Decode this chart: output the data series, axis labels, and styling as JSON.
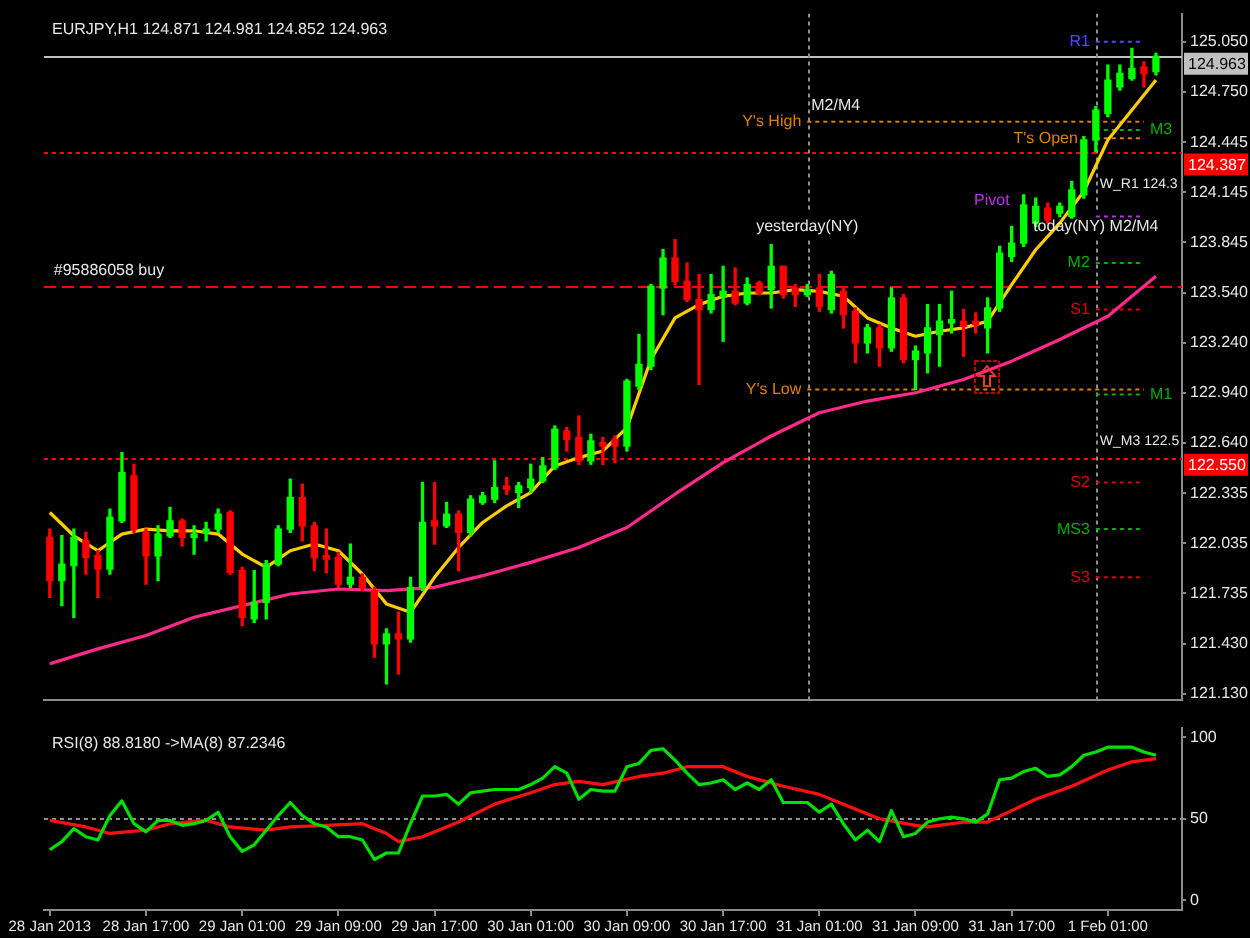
{
  "chart_data": [
    {
      "type": "candlestick",
      "title": "EURJPY,H1 124.871 124.981 124.852 124.963",
      "x": [
        "2013-01-28T09:00",
        "2013-01-28T10:00",
        "2013-01-28T11:00",
        "2013-01-28T12:00",
        "2013-01-28T13:00",
        "2013-01-28T14:00",
        "2013-01-28T15:00",
        "2013-01-28T16:00",
        "2013-01-28T17:00",
        "2013-01-28T18:00",
        "2013-01-28T19:00",
        "2013-01-28T20:00",
        "2013-01-28T21:00",
        "2013-01-28T22:00",
        "2013-01-28T23:00",
        "2013-01-29T00:00",
        "2013-01-29T01:00",
        "2013-01-29T02:00",
        "2013-01-29T03:00",
        "2013-01-29T04:00",
        "2013-01-29T05:00",
        "2013-01-29T06:00",
        "2013-01-29T07:00",
        "2013-01-29T08:00",
        "2013-01-29T09:00",
        "2013-01-29T10:00",
        "2013-01-29T11:00",
        "2013-01-29T12:00",
        "2013-01-29T13:00",
        "2013-01-29T14:00",
        "2013-01-29T15:00",
        "2013-01-29T16:00",
        "2013-01-29T17:00",
        "2013-01-29T18:00",
        "2013-01-29T19:00",
        "2013-01-29T20:00",
        "2013-01-29T21:00",
        "2013-01-29T22:00",
        "2013-01-29T23:00",
        "2013-01-30T00:00",
        "2013-01-30T01:00",
        "2013-01-30T02:00",
        "2013-01-30T03:00",
        "2013-01-30T04:00",
        "2013-01-30T05:00",
        "2013-01-30T06:00",
        "2013-01-30T07:00",
        "2013-01-30T08:00",
        "2013-01-30T09:00",
        "2013-01-30T10:00",
        "2013-01-30T11:00",
        "2013-01-30T12:00",
        "2013-01-30T13:00",
        "2013-01-30T14:00",
        "2013-01-30T15:00",
        "2013-01-30T16:00",
        "2013-01-30T17:00",
        "2013-01-30T18:00",
        "2013-01-30T19:00",
        "2013-01-30T20:00",
        "2013-01-30T21:00",
        "2013-01-30T22:00",
        "2013-01-30T23:00",
        "2013-01-31T00:00",
        "2013-01-31T01:00",
        "2013-01-31T02:00",
        "2013-01-31T03:00",
        "2013-01-31T04:00",
        "2013-01-31T05:00",
        "2013-01-31T06:00",
        "2013-01-31T07:00",
        "2013-01-31T08:00",
        "2013-01-31T09:00",
        "2013-01-31T10:00",
        "2013-01-31T11:00",
        "2013-01-31T12:00",
        "2013-01-31T13:00",
        "2013-01-31T14:00",
        "2013-01-31T15:00",
        "2013-01-31T16:00",
        "2013-01-31T17:00",
        "2013-01-31T18:00",
        "2013-01-31T19:00",
        "2013-01-31T20:00",
        "2013-01-31T21:00",
        "2013-01-31T22:00",
        "2013-01-31T23:00",
        "2013-02-01T00:00",
        "2013-02-01T01:00",
        "2013-02-01T02:00",
        "2013-02-01T03:00",
        "2013-02-01T04:00",
        "2013-02-01T05:00"
      ],
      "ohlc": [
        [
          122.07,
          122.12,
          121.71,
          121.81
        ],
        [
          121.81,
          122.08,
          121.66,
          121.91
        ],
        [
          121.9,
          122.12,
          121.59,
          122.07
        ],
        [
          122.05,
          122.1,
          121.85,
          121.95
        ],
        [
          121.96,
          121.99,
          121.71,
          121.88
        ],
        [
          121.88,
          122.24,
          121.85,
          122.19
        ],
        [
          122.17,
          122.58,
          122.16,
          122.46
        ],
        [
          122.44,
          122.51,
          122.1,
          122.12
        ],
        [
          122.1,
          122.12,
          121.79,
          121.96
        ],
        [
          121.96,
          122.14,
          121.81,
          122.09
        ],
        [
          122.08,
          122.25,
          122.07,
          122.17
        ],
        [
          122.17,
          122.18,
          122.02,
          122.07
        ],
        [
          122.07,
          122.14,
          121.97,
          122.09
        ],
        [
          122.1,
          122.16,
          122.05,
          122.12
        ],
        [
          122.12,
          122.24,
          122.1,
          122.21
        ],
        [
          122.22,
          122.23,
          121.85,
          121.86
        ],
        [
          121.87,
          121.89,
          121.54,
          121.59
        ],
        [
          121.58,
          121.87,
          121.56,
          121.68
        ],
        [
          121.68,
          121.93,
          121.58,
          121.91
        ],
        [
          121.91,
          122.14,
          121.9,
          122.12
        ],
        [
          122.12,
          122.42,
          122.1,
          122.31
        ],
        [
          122.31,
          122.39,
          122.05,
          122.14
        ],
        [
          122.14,
          122.16,
          121.87,
          121.95
        ],
        [
          121.96,
          122.12,
          121.86,
          121.94
        ],
        [
          121.95,
          121.98,
          121.77,
          121.79
        ],
        [
          121.79,
          122.03,
          121.77,
          121.83
        ],
        [
          121.83,
          121.85,
          121.75,
          121.77
        ],
        [
          121.75,
          121.77,
          121.35,
          121.43
        ],
        [
          121.43,
          121.52,
          121.19,
          121.49
        ],
        [
          121.49,
          121.62,
          121.25,
          121.46
        ],
        [
          121.46,
          121.83,
          121.44,
          121.77
        ],
        [
          121.77,
          122.4,
          121.75,
          122.16
        ],
        [
          122.17,
          122.4,
          122.03,
          122.14
        ],
        [
          122.14,
          122.28,
          122.13,
          122.21
        ],
        [
          122.21,
          122.23,
          121.87,
          122.1
        ],
        [
          122.1,
          122.32,
          122.08,
          122.3
        ],
        [
          122.28,
          122.34,
          122.27,
          122.32
        ],
        [
          122.3,
          122.53,
          122.28,
          122.37
        ],
        [
          122.38,
          122.43,
          122.33,
          122.36
        ],
        [
          122.34,
          122.4,
          122.25,
          122.38
        ],
        [
          122.37,
          122.51,
          122.34,
          122.42
        ],
        [
          122.41,
          122.55,
          122.4,
          122.5
        ],
        [
          122.49,
          122.74,
          122.48,
          122.72
        ],
        [
          122.71,
          122.73,
          122.59,
          122.66
        ],
        [
          122.67,
          122.8,
          122.51,
          122.53
        ],
        [
          122.53,
          122.69,
          122.51,
          122.65
        ],
        [
          122.64,
          122.67,
          122.51,
          122.62
        ],
        [
          122.66,
          122.68,
          122.52,
          122.62
        ],
        [
          122.62,
          123.02,
          122.59,
          123.01
        ],
        [
          122.98,
          123.29,
          122.96,
          123.11
        ],
        [
          123.1,
          123.59,
          123.08,
          123.58
        ],
        [
          123.57,
          123.8,
          123.41,
          123.75
        ],
        [
          123.75,
          123.86,
          123.59,
          123.61
        ],
        [
          123.61,
          123.72,
          123.49,
          123.5
        ],
        [
          123.5,
          123.65,
          122.99,
          123.44
        ],
        [
          123.44,
          123.65,
          123.42,
          123.53
        ],
        [
          123.52,
          123.7,
          123.25,
          123.55
        ],
        [
          123.55,
          123.69,
          123.47,
          123.48
        ],
        [
          123.48,
          123.63,
          123.47,
          123.59
        ],
        [
          123.6,
          123.61,
          123.53,
          123.54
        ],
        [
          123.56,
          123.83,
          123.45,
          123.7
        ],
        [
          123.7,
          123.7,
          123.51,
          123.53
        ],
        [
          123.57,
          123.59,
          123.46,
          123.53
        ],
        [
          123.53,
          123.59,
          123.52,
          123.56
        ],
        [
          123.57,
          123.65,
          123.43,
          123.46
        ],
        [
          123.44,
          123.67,
          123.42,
          123.65
        ],
        [
          123.55,
          123.57,
          123.33,
          123.41
        ],
        [
          123.43,
          123.45,
          123.12,
          123.24
        ],
        [
          123.24,
          123.35,
          123.18,
          123.33
        ],
        [
          123.33,
          123.35,
          123.1,
          123.21
        ],
        [
          123.21,
          123.57,
          123.19,
          123.51
        ],
        [
          123.51,
          123.53,
          123.12,
          123.14
        ],
        [
          123.14,
          123.22,
          122.96,
          123.19
        ],
        [
          123.18,
          123.47,
          123.06,
          123.33
        ],
        [
          123.29,
          123.47,
          123.1,
          123.37
        ],
        [
          123.36,
          123.55,
          123.3,
          123.38
        ],
        [
          123.37,
          123.44,
          123.16,
          123.34
        ],
        [
          123.37,
          123.42,
          123.3,
          123.35
        ],
        [
          123.33,
          123.51,
          123.18,
          123.45
        ],
        [
          123.45,
          123.82,
          123.43,
          123.78
        ],
        [
          123.76,
          123.94,
          123.73,
          123.84
        ],
        [
          123.84,
          124.13,
          123.82,
          124.07
        ],
        [
          123.96,
          124.11,
          123.94,
          124.06
        ],
        [
          124.05,
          124.08,
          123.96,
          123.98
        ],
        [
          124.02,
          124.08,
          124.0,
          124.06
        ],
        [
          124.0,
          124.21,
          123.99,
          124.16
        ],
        [
          124.13,
          124.48,
          124.11,
          124.46
        ],
        [
          124.46,
          124.66,
          124.39,
          124.64
        ],
        [
          124.62,
          124.91,
          124.6,
          124.82
        ],
        [
          124.78,
          124.91,
          124.76,
          124.86
        ],
        [
          124.83,
          125.01,
          124.82,
          124.89
        ],
        [
          124.9,
          124.93,
          124.78,
          124.86
        ],
        [
          124.871,
          124.981,
          124.852,
          124.963
        ]
      ],
      "colors": [
        "#ff0000",
        "#00ff00",
        "#00ff00",
        "#ff0000",
        "#ff0000",
        "#00ff00",
        "#00ff00",
        "#ff0000",
        "#ff0000",
        "#00ff00",
        "#00ff00",
        "#ff0000",
        "#00ff00",
        "#00ff00",
        "#00ff00",
        "#ff0000",
        "#ff0000",
        "#00ff00",
        "#00ff00",
        "#00ff00",
        "#00ff00",
        "#ff0000",
        "#ff0000",
        "#ff0000",
        "#ff0000",
        "#00ff00",
        "#ff0000",
        "#ff0000",
        "#00ff00",
        "#ff0000",
        "#00ff00",
        "#00ff00",
        "#ff0000",
        "#00ff00",
        "#ff0000",
        "#00ff00",
        "#00ff00",
        "#00ff00",
        "#ff0000",
        "#00ff00",
        "#00ff00",
        "#00ff00",
        "#00ff00",
        "#ff0000",
        "#ff0000",
        "#00ff00",
        "#ff0000",
        "#ff0000",
        "#00ff00",
        "#00ff00",
        "#00ff00",
        "#00ff00",
        "#ff0000",
        "#ff0000",
        "#ff0000",
        "#00ff00",
        "#00ff00",
        "#ff0000",
        "#00ff00",
        "#ff0000",
        "#00ff00",
        "#ff0000",
        "#ff0000",
        "#00ff00",
        "#ff0000",
        "#00ff00",
        "#ff0000",
        "#ff0000",
        "#00ff00",
        "#ff0000",
        "#00ff00",
        "#ff0000",
        "#00ff00",
        "#00ff00",
        "#00ff00",
        "#00ff00",
        "#ff0000",
        "#ff0000",
        "#00ff00",
        "#00ff00",
        "#00ff00",
        "#00ff00",
        "#00ff00",
        "#ff0000",
        "#00ff00",
        "#00ff00",
        "#00ff00",
        "#00ff00",
        "#00ff00",
        "#00ff00",
        "#00ff00",
        "#ff0000",
        "#00ff00"
      ],
      "series": [
        {
          "type": "line",
          "color": "#ffcc00",
          "x": [
            "2013-01-28T09:00",
            "2013-01-28T11:00",
            "2013-01-28T13:00",
            "2013-01-28T15:00",
            "2013-01-28T17:00",
            "2013-01-28T19:00",
            "2013-01-28T21:00",
            "2013-01-28T23:00",
            "2013-01-29T01:00",
            "2013-01-29T03:00",
            "2013-01-29T05:00",
            "2013-01-29T07:00",
            "2013-01-29T09:00",
            "2013-01-29T11:00",
            "2013-01-29T13:00",
            "2013-01-29T15:00",
            "2013-01-29T17:00",
            "2013-01-29T19:00",
            "2013-01-29T21:00",
            "2013-01-29T23:00",
            "2013-01-30T01:00",
            "2013-01-30T03:00",
            "2013-01-30T05:00",
            "2013-01-30T07:00",
            "2013-01-30T09:00",
            "2013-01-30T11:00",
            "2013-01-30T13:00",
            "2013-01-30T15:00",
            "2013-01-30T17:00",
            "2013-01-30T19:00",
            "2013-01-30T21:00",
            "2013-01-30T23:00",
            "2013-01-31T01:00",
            "2013-01-31T03:00",
            "2013-01-31T05:00",
            "2013-01-31T07:00",
            "2013-01-31T09:00",
            "2013-01-31T11:00",
            "2013-01-31T13:00",
            "2013-01-31T15:00",
            "2013-01-31T17:00",
            "2013-01-31T19:00",
            "2013-01-31T21:00",
            "2013-01-31T23:00",
            "2013-02-01T01:00",
            "2013-02-01T03:00",
            "2013-02-01T05:00"
          ],
          "values": [
            122.22,
            122.08,
            121.99,
            122.09,
            122.12,
            122.11,
            122.11,
            122.09,
            121.97,
            121.89,
            121.99,
            122.03,
            121.99,
            121.85,
            121.67,
            121.62,
            121.83,
            122.01,
            122.16,
            122.26,
            122.34,
            122.5,
            122.55,
            122.59,
            122.73,
            123.14,
            123.39,
            123.47,
            123.52,
            123.54,
            123.54,
            123.56,
            123.55,
            123.52,
            123.39,
            123.33,
            123.28,
            123.31,
            123.33,
            123.37,
            123.59,
            123.8,
            123.96,
            124.15,
            124.46,
            124.64,
            124.82
          ]
        },
        {
          "type": "line",
          "color": "#ff2a8c",
          "x": [
            "2013-01-28T09:00",
            "2013-01-28T13:00",
            "2013-01-28T17:00",
            "2013-01-28T21:00",
            "2013-01-29T01:00",
            "2013-01-29T05:00",
            "2013-01-29T09:00",
            "2013-01-29T13:00",
            "2013-01-29T17:00",
            "2013-01-29T21:00",
            "2013-01-30T01:00",
            "2013-01-30T05:00",
            "2013-01-30T09:00",
            "2013-01-30T13:00",
            "2013-01-30T17:00",
            "2013-01-30T21:00",
            "2013-01-31T01:00",
            "2013-01-31T05:00",
            "2013-01-31T09:00",
            "2013-01-31T13:00",
            "2013-01-31T17:00",
            "2013-01-31T21:00",
            "2013-02-01T01:00",
            "2013-02-01T05:00"
          ],
          "values": [
            121.31,
            121.4,
            121.48,
            121.59,
            121.66,
            121.73,
            121.76,
            121.75,
            121.77,
            121.84,
            121.92,
            122.01,
            122.13,
            122.33,
            122.52,
            122.68,
            122.82,
            122.89,
            122.94,
            123.02,
            123.13,
            123.26,
            123.4,
            123.64
          ]
        },
        {
          "type": "line",
          "name": "R1",
          "color": "#4a4aff",
          "line_style": "dotted",
          "x": [
            "2013-02-01T00:00",
            "2013-02-01T04:00"
          ],
          "values": [
            125.05,
            125.05
          ]
        },
        {
          "type": "line",
          "name": "M3",
          "color": "#00b000",
          "line_style": "dotted",
          "x": [
            "2013-02-01T00:00",
            "2013-02-01T04:00"
          ],
          "values": [
            124.52,
            124.52
          ]
        },
        {
          "type": "line",
          "name": "T's Open",
          "color": "#e08000",
          "line_style": "dotted",
          "x": [
            "2013-02-01T00:00",
            "2013-02-01T04:00"
          ],
          "values": [
            124.47,
            124.47
          ]
        },
        {
          "type": "line",
          "name": "Pivot",
          "color": "#c030f0",
          "line_style": "dotted",
          "x": [
            "2013-02-01T00:00",
            "2013-02-01T04:00"
          ],
          "values": [
            124.0,
            124.0
          ]
        },
        {
          "type": "line",
          "name": "M2",
          "color": "#00b000",
          "line_style": "dotted",
          "x": [
            "2013-02-01T00:00",
            "2013-02-01T04:00"
          ],
          "values": [
            123.72,
            123.72
          ]
        },
        {
          "type": "line",
          "name": "S1",
          "color": "#e00000",
          "line_style": "dotted",
          "x": [
            "2013-02-01T00:00",
            "2013-02-01T04:00"
          ],
          "values": [
            123.44,
            123.44
          ]
        },
        {
          "type": "line",
          "name": "M1",
          "color": "#00b000",
          "line_style": "dotted",
          "x": [
            "2013-02-01T00:00",
            "2013-02-01T04:00"
          ],
          "values": [
            122.93,
            122.93
          ]
        },
        {
          "type": "line",
          "name": "S2",
          "color": "#e00000",
          "line_style": "dotted",
          "x": [
            "2013-02-01T00:00",
            "2013-02-01T04:00"
          ],
          "values": [
            122.4,
            122.4
          ]
        },
        {
          "type": "line",
          "name": "MS3",
          "color": "#00b000",
          "line_style": "dotted",
          "x": [
            "2013-02-01T00:00",
            "2013-02-01T04:00"
          ],
          "values": [
            122.12,
            122.12
          ]
        },
        {
          "type": "line",
          "name": "S3",
          "color": "#e00000",
          "line_style": "dotted",
          "x": [
            "2013-02-01T00:00",
            "2013-02-01T04:00"
          ],
          "values": [
            121.83,
            121.83
          ]
        },
        {
          "type": "line",
          "name": "Y's High",
          "color": "#e08000",
          "line_style": "dotted",
          "x": [
            "2013-01-31T00:00",
            "2013-02-01T04:00"
          ],
          "values": [
            124.57,
            124.57
          ]
        },
        {
          "type": "line",
          "name": "Y's Low",
          "color": "#e08000",
          "line_style": "dotted",
          "x": [
            "2013-01-31T00:00",
            "2013-02-01T04:00"
          ],
          "values": [
            122.96,
            122.96
          ]
        }
      ],
      "xlim": [
        "2013-01-28T08:31",
        "2013-02-01T07:10"
      ],
      "ylim": [
        121.09,
        125.22
      ],
      "yticks": [
        {
          "value": 125.05,
          "label": "125.050"
        },
        {
          "value": 124.75,
          "label": "124.750"
        },
        124.445,
        124.145,
        123.845,
        {
          "value": 123.54,
          "label": "123.540"
        },
        {
          "value": 123.24,
          "label": "123.240"
        },
        {
          "value": 122.94,
          "label": "122.940"
        },
        {
          "value": 122.64,
          "label": "122.640"
        },
        122.335,
        122.035,
        121.735,
        {
          "value": 121.43,
          "label": "121.430"
        },
        {
          "value": 121.13,
          "label": "121.130"
        }
      ],
      "tick_labels": "y",
      "ref_lines": [
        {
          "axis": "y",
          "value": 124.963,
          "label": "124.963",
          "color": "#c0c0c0",
          "line_style": "solid"
        },
        {
          "axis": "y",
          "value": 124.387,
          "label": "124.387",
          "color": "#ff0000",
          "line_style": "dotted"
        },
        {
          "axis": "y",
          "value": 123.58,
          "color": "#ff0000",
          "line_style": "dashed"
        },
        {
          "axis": "y",
          "value": 122.55,
          "label": "122.550",
          "color": "#ff0000",
          "line_style": "dotted"
        },
        {
          "axis": "x",
          "value": "2013-01-31T00:00",
          "label": "yesterday(NY)",
          "color": "#909090",
          "line_style": "dotted"
        },
        {
          "axis": "x",
          "value": "2013-02-01T00:00",
          "label": "today(NY) M2/M4",
          "color": "#909090",
          "line_style": "dotted"
        }
      ],
      "annotations": [
        {
          "text": "#95886058 buy",
          "x": "2013-01-28T09:00",
          "y": 123.58
        },
        {
          "text": "M2/M4",
          "x": "2013-01-31T00:00",
          "y": 124.57
        },
        {
          "text": "W_R1 124.3",
          "x": "2013-02-01T00:00",
          "y": 124.387
        },
        {
          "text": "W_M3 122.5",
          "x": "2013-02-01T00:00",
          "y": 122.55
        }
      ]
    },
    {
      "type": "line",
      "title": "RSI(8) 88.8180 ->MA(8) 87.2346",
      "x": [
        "2013-01-28T09:00",
        "2013-01-28T10:00",
        "2013-01-28T11:00",
        "2013-01-28T12:00",
        "2013-01-28T13:00",
        "2013-01-28T14:00",
        "2013-01-28T15:00",
        "2013-01-28T16:00",
        "2013-01-28T17:00",
        "2013-01-28T18:00",
        "2013-01-28T19:00",
        "2013-01-28T20:00",
        "2013-01-28T21:00",
        "2013-01-28T22:00",
        "2013-01-28T23:00",
        "2013-01-29T00:00",
        "2013-01-29T01:00",
        "2013-01-29T02:00",
        "2013-01-29T03:00",
        "2013-01-29T04:00",
        "2013-01-29T05:00",
        "2013-01-29T06:00",
        "2013-01-29T07:00",
        "2013-01-29T08:00",
        "2013-01-29T09:00",
        "2013-01-29T10:00",
        "2013-01-29T11:00",
        "2013-01-29T12:00",
        "2013-01-29T13:00",
        "2013-01-29T14:00",
        "2013-01-29T15:00",
        "2013-01-29T16:00",
        "2013-01-29T17:00",
        "2013-01-29T18:00",
        "2013-01-29T19:00",
        "2013-01-29T20:00",
        "2013-01-29T21:00",
        "2013-01-29T22:00",
        "2013-01-29T23:00",
        "2013-01-30T00:00",
        "2013-01-30T01:00",
        "2013-01-30T02:00",
        "2013-01-30T03:00",
        "2013-01-30T04:00",
        "2013-01-30T05:00",
        "2013-01-30T06:00",
        "2013-01-30T07:00",
        "2013-01-30T08:00",
        "2013-01-30T09:00",
        "2013-01-30T10:00",
        "2013-01-30T11:00",
        "2013-01-30T12:00",
        "2013-01-30T13:00",
        "2013-01-30T14:00",
        "2013-01-30T15:00",
        "2013-01-30T16:00",
        "2013-01-30T17:00",
        "2013-01-30T18:00",
        "2013-01-30T19:00",
        "2013-01-30T20:00",
        "2013-01-30T21:00",
        "2013-01-30T22:00",
        "2013-01-30T23:00",
        "2013-01-31T00:00",
        "2013-01-31T01:00",
        "2013-01-31T02:00",
        "2013-01-31T03:00",
        "2013-01-31T04:00",
        "2013-01-31T05:00",
        "2013-01-31T06:00",
        "2013-01-31T07:00",
        "2013-01-31T08:00",
        "2013-01-31T09:00",
        "2013-01-31T10:00",
        "2013-01-31T11:00",
        "2013-01-31T12:00",
        "2013-01-31T13:00",
        "2013-01-31T14:00",
        "2013-01-31T15:00",
        "2013-01-31T16:00",
        "2013-01-31T17:00",
        "2013-01-31T18:00",
        "2013-01-31T19:00",
        "2013-01-31T20:00",
        "2013-01-31T21:00",
        "2013-01-31T22:00",
        "2013-01-31T23:00",
        "2013-02-01T00:00",
        "2013-02-01T01:00",
        "2013-02-01T02:00",
        "2013-02-01T03:00",
        "2013-02-01T04:00",
        "2013-02-01T05:00"
      ],
      "series": [
        {
          "color": "#00e000",
          "values": [
            31,
            36,
            44,
            39,
            37,
            52,
            61,
            47,
            42,
            49,
            49,
            46,
            47,
            49,
            54,
            39,
            30,
            34,
            43,
            52,
            60,
            52,
            47,
            45,
            39,
            39,
            37,
            25,
            29,
            29,
            47,
            64,
            64,
            65,
            59,
            66,
            67,
            68,
            68,
            68,
            71,
            75,
            82,
            78,
            62,
            68,
            67,
            67,
            82,
            84,
            92,
            93,
            86,
            78,
            71,
            72,
            74,
            68,
            72,
            68,
            74,
            60,
            60,
            60,
            54,
            59,
            47,
            37,
            43,
            36,
            55,
            39,
            41,
            48,
            50,
            51,
            50,
            48,
            53,
            74,
            75,
            79,
            81,
            76,
            77,
            82,
            89,
            91,
            94,
            94,
            94,
            91,
            89
          ]
        },
        {
          "color": "#ff1010",
          "x": [
            "2013-01-28T09:00",
            "2013-01-28T12:00",
            "2013-01-28T14:00",
            "2013-01-28T17:00",
            "2013-01-28T19:00",
            "2013-01-28T22:00",
            "2013-01-29T00:00",
            "2013-01-29T03:00",
            "2013-01-29T05:00",
            "2013-01-29T08:00",
            "2013-01-29T11:00",
            "2013-01-29T13:00",
            "2013-01-29T14:00",
            "2013-01-29T16:00",
            "2013-01-29T19:00",
            "2013-01-29T22:00",
            "2013-01-30T01:00",
            "2013-01-30T03:00",
            "2013-01-30T05:00",
            "2013-01-30T07:00",
            "2013-01-30T10:00",
            "2013-01-30T12:00",
            "2013-01-30T14:00",
            "2013-01-30T17:00",
            "2013-01-30T19:00",
            "2013-01-30T22:00",
            "2013-01-31T01:00",
            "2013-01-31T03:00",
            "2013-01-31T06:00",
            "2013-01-31T09:00",
            "2013-01-31T10:00",
            "2013-01-31T13:00",
            "2013-01-31T15:00",
            "2013-01-31T17:00",
            "2013-01-31T19:00",
            "2013-01-31T22:00",
            "2013-02-01T01:00",
            "2013-02-01T03:00",
            "2013-02-01T05:00"
          ],
          "values": [
            49,
            45,
            41,
            43,
            47,
            49,
            45,
            43,
            45,
            46,
            47,
            41,
            36,
            39,
            48,
            59,
            66,
            71,
            73,
            71,
            76,
            78,
            82,
            82,
            76,
            70,
            65,
            59,
            50,
            46,
            45,
            48,
            48,
            55,
            62,
            70,
            80,
            85,
            87
          ]
        }
      ],
      "xlim": [
        "2013-01-28T08:31",
        "2013-02-01T07:10"
      ],
      "xticks": [
        {
          "value": "2013-01-28T09:00",
          "label": "28 Jan 2013"
        },
        {
          "value": "2013-01-28T17:00",
          "label": "28 Jan 17:00"
        },
        {
          "value": "2013-01-29T01:00",
          "label": "29 Jan 01:00"
        },
        {
          "value": "2013-01-29T09:00",
          "label": "29 Jan 09:00"
        },
        {
          "value": "2013-01-29T17:00",
          "label": "29 Jan 17:00"
        },
        {
          "value": "2013-01-30T01:00",
          "label": "30 Jan 01:00"
        },
        {
          "value": "2013-01-30T09:00",
          "label": "30 Jan 09:00"
        },
        {
          "value": "2013-01-30T17:00",
          "label": "30 Jan 17:00"
        },
        {
          "value": "2013-01-31T01:00",
          "label": "31 Jan 01:00"
        },
        {
          "value": "2013-01-31T09:00",
          "label": "31 Jan 09:00"
        },
        {
          "value": "2013-01-31T17:00",
          "label": "31 Jan 17:00"
        },
        {
          "value": "2013-02-01T01:00",
          "label": "1 Feb 01:00"
        }
      ],
      "ylim": [
        -6,
        106
      ],
      "yticks": [
        0,
        50,
        100
      ],
      "ref_lines": [
        {
          "axis": "y",
          "value": 50,
          "color": "#909090",
          "line_style": "dotted"
        }
      ]
    }
  ]
}
